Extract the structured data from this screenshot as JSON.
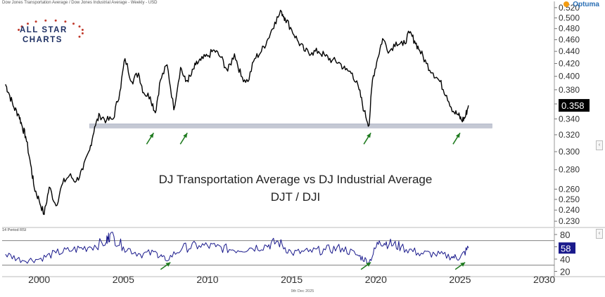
{
  "header": {
    "title": "Dow Jones Transportation Average / Dow Jones Industrial Average - Weekly - USD",
    "brand": "Optuma",
    "date": "9th Dec 2025"
  },
  "logo": {
    "line1": "ALL STAR",
    "line2": "CHARTS"
  },
  "annotation": {
    "line1": "DJ Transportation Average vs DJ Industrial Average",
    "line2": "DJT / DJI"
  },
  "colors": {
    "price_line": "#000000",
    "rsi_line": "#1a1a8c",
    "support_band": "#c4c8d4",
    "arrow": "#1e7a1e",
    "last_value_bg": "#000000",
    "rsi_value_bg": "#1a1a8c"
  },
  "chart_data": [
    {
      "type": "line",
      "name": "price",
      "title": "Dow Jones Transportation Average / Dow Jones Industrial Average - Weekly - USD",
      "x_unit": "year",
      "xlim": [
        1997.8,
        2030.6
      ],
      "ylim": [
        0.227,
        0.524
      ],
      "scale": "log",
      "x_ticks": [
        2000,
        2005,
        2010,
        2015,
        2020,
        2025,
        2030
      ],
      "x_tick_labels": [
        "2000",
        "2005",
        "2010",
        "2015",
        "2020",
        "2025",
        "2030"
      ],
      "y_ticks": [
        0.23,
        0.24,
        0.25,
        0.26,
        0.28,
        0.3,
        0.32,
        0.34,
        0.36,
        0.38,
        0.4,
        0.42,
        0.44,
        0.46,
        0.48,
        0.5,
        0.52
      ],
      "y_tick_labels": [
        "0.230",
        "0.240",
        "0.250",
        "0.260",
        "0.280",
        "0.300",
        "0.320",
        "0.340",
        "0.360",
        "0.380",
        "0.400",
        "0.420",
        "0.440",
        "0.460",
        "0.480",
        "0.500",
        "0.520"
      ],
      "last_value": "0.358",
      "support_level": {
        "value": 0.331,
        "from": 2003.0,
        "to": 2026.9
      },
      "support_arrows": [
        2006.8,
        2008.8,
        2019.7,
        2025.0
      ],
      "x": [
        1998.0,
        1998.2,
        1998.5,
        1998.8,
        1999.0,
        1999.2,
        1999.5,
        1999.7,
        2000.0,
        2000.3,
        2000.6,
        2001.0,
        2001.4,
        2001.8,
        2002.2,
        2002.6,
        2003.0,
        2003.3,
        2003.6,
        2004.0,
        2004.4,
        2004.8,
        2005.1,
        2005.5,
        2005.9,
        2006.2,
        2006.6,
        2006.9,
        2007.2,
        2007.6,
        2008.0,
        2008.4,
        2008.7,
        2009.0,
        2009.3,
        2009.6,
        2010.0,
        2010.4,
        2010.8,
        2011.2,
        2011.6,
        2012.0,
        2012.4,
        2012.8,
        2013.2,
        2013.6,
        2014.0,
        2014.4,
        2014.6,
        2015.0,
        2015.4,
        2015.8,
        2016.2,
        2016.6,
        2017.0,
        2017.4,
        2017.8,
        2018.2,
        2018.6,
        2019.0,
        2019.3,
        2019.6,
        2019.8,
        2020.1,
        2020.4,
        2020.8,
        2021.2,
        2021.6,
        2022.0,
        2022.3,
        2022.6,
        2023.0,
        2023.4,
        2023.8,
        2024.2,
        2024.6,
        2024.9,
        2025.1,
        2025.3,
        2025.5
      ],
      "values": [
        0.388,
        0.375,
        0.355,
        0.345,
        0.33,
        0.318,
        0.285,
        0.262,
        0.249,
        0.236,
        0.262,
        0.244,
        0.266,
        0.274,
        0.268,
        0.28,
        0.302,
        0.33,
        0.345,
        0.338,
        0.34,
        0.378,
        0.428,
        0.392,
        0.405,
        0.376,
        0.37,
        0.348,
        0.394,
        0.418,
        0.352,
        0.414,
        0.392,
        0.4,
        0.418,
        0.425,
        0.432,
        0.442,
        0.43,
        0.408,
        0.436,
        0.4,
        0.392,
        0.428,
        0.44,
        0.462,
        0.492,
        0.512,
        0.5,
        0.478,
        0.456,
        0.44,
        0.438,
        0.44,
        0.432,
        0.425,
        0.422,
        0.41,
        0.405,
        0.38,
        0.35,
        0.332,
        0.395,
        0.428,
        0.462,
        0.44,
        0.456,
        0.45,
        0.472,
        0.458,
        0.442,
        0.42,
        0.405,
        0.392,
        0.372,
        0.35,
        0.345,
        0.338,
        0.342,
        0.358
      ]
    },
    {
      "type": "line",
      "name": "14 Period RSI",
      "title": "14 Period RSI",
      "x_unit": "year",
      "xlim": [
        1997.8,
        2030.6
      ],
      "ylim": [
        16,
        88
      ],
      "y_ticks": [
        20,
        40,
        60,
        80
      ],
      "y_tick_labels": [
        "20",
        "40",
        "60",
        "80"
      ],
      "reference_lines": [
        70,
        30
      ],
      "last_value": "58",
      "support_arrows": [
        2007.8,
        2019.7,
        2025.3
      ],
      "x": [
        1998.0,
        1999.0,
        2000.0,
        2001.0,
        2002.0,
        2003.0,
        2004.0,
        2004.2,
        2005.0,
        2006.0,
        2007.0,
        2007.5,
        2008.5,
        2009.5,
        2010.5,
        2011.5,
        2012.5,
        2013.5,
        2014.2,
        2015.0,
        2016.0,
        2017.0,
        2018.0,
        2019.0,
        2019.6,
        2020.2,
        2020.8,
        2021.5,
        2022.5,
        2023.5,
        2024.5,
        2025.0,
        2025.5
      ],
      "values": [
        48,
        38,
        40,
        50,
        55,
        60,
        68,
        80,
        60,
        48,
        50,
        38,
        58,
        62,
        60,
        55,
        58,
        62,
        68,
        50,
        52,
        55,
        58,
        45,
        35,
        70,
        65,
        60,
        50,
        48,
        44,
        42,
        58
      ]
    }
  ]
}
